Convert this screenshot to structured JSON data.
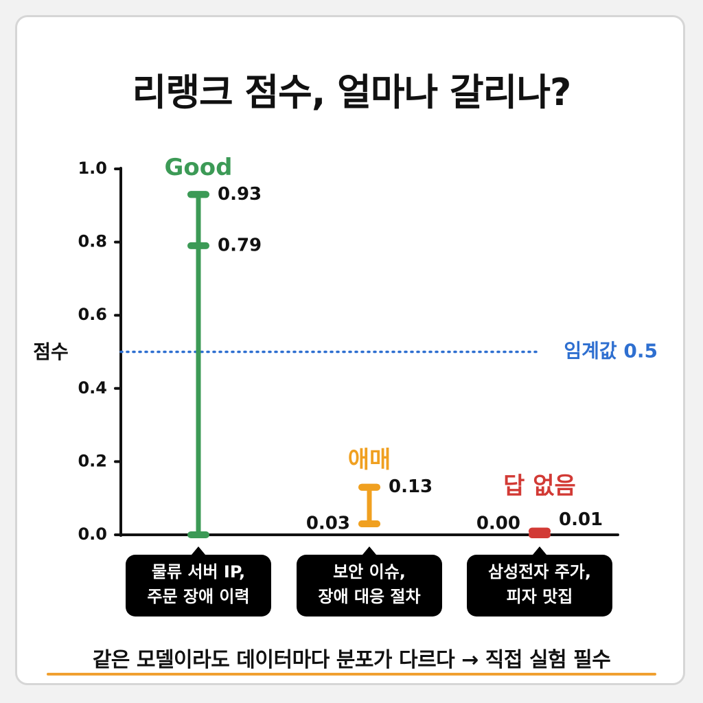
{
  "title": "리랭크 점수, 얼마나 갈리나?",
  "footer": "같은 모델이라도 데이터마다 분포가 다르다 → 직접 실험 필수",
  "colors": {
    "good": "#3c9a56",
    "ambiguous": "#f0a020",
    "none": "#d23a35",
    "threshold": "#2e6fd0",
    "axis": "#111111",
    "footer_underline": "#f0a030"
  },
  "chart_data": {
    "type": "range-plot",
    "ylabel": "점수",
    "ylim": [
      0,
      1
    ],
    "yticks": [
      "0.0",
      "0.2",
      "0.4",
      "0.6",
      "0.8",
      "1.0"
    ],
    "threshold": {
      "value": 0.5,
      "label": "임계값 0.5"
    },
    "groups": [
      {
        "category": "Good",
        "color_key": "good",
        "low": 0.0,
        "high": 0.93,
        "marks": [
          {
            "value": 0.93,
            "label": "0.93",
            "side": "right"
          },
          {
            "value": 0.79,
            "label": "0.79",
            "side": "right"
          }
        ],
        "query_lines": [
          "물류 서버 IP,",
          "주문 장애 이력"
        ]
      },
      {
        "category": "애매",
        "color_key": "ambiguous",
        "low": 0.03,
        "high": 0.13,
        "marks": [
          {
            "value": 0.13,
            "label": "0.13",
            "side": "right"
          },
          {
            "value": 0.03,
            "label": "0.03",
            "side": "left"
          }
        ],
        "query_lines": [
          "보안 이슈,",
          "장애 대응 절차"
        ]
      },
      {
        "category": "답 없음",
        "color_key": "none",
        "low": 0.0,
        "high": 0.01,
        "marks": [
          {
            "value": 0.0,
            "label": "0.00",
            "side": "left"
          },
          {
            "value": 0.01,
            "label": "0.01",
            "side": "right"
          }
        ],
        "query_lines": [
          "삼성전자 주가,",
          "피자 맛집"
        ]
      }
    ]
  }
}
